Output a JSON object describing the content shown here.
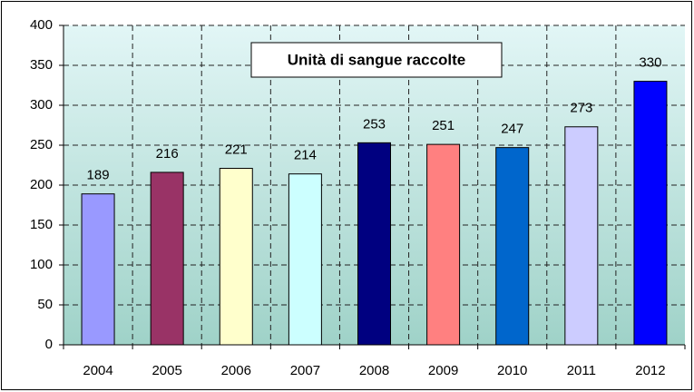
{
  "chart_data": {
    "type": "bar",
    "title": "Unità di sangue raccolte",
    "categories": [
      "2004",
      "2005",
      "2006",
      "2007",
      "2008",
      "2009",
      "2010",
      "2011",
      "2012"
    ],
    "values": [
      189,
      216,
      221,
      214,
      253,
      251,
      247,
      273,
      330
    ],
    "colors": [
      "#9999ff",
      "#993366",
      "#ffffcc",
      "#ccffff",
      "#000080",
      "#ff8080",
      "#0066cc",
      "#ccccff",
      "#0000ff"
    ],
    "ylim": [
      0,
      400
    ],
    "yticks": [
      0,
      50,
      100,
      150,
      200,
      250,
      300,
      350,
      400
    ],
    "grid": true
  }
}
